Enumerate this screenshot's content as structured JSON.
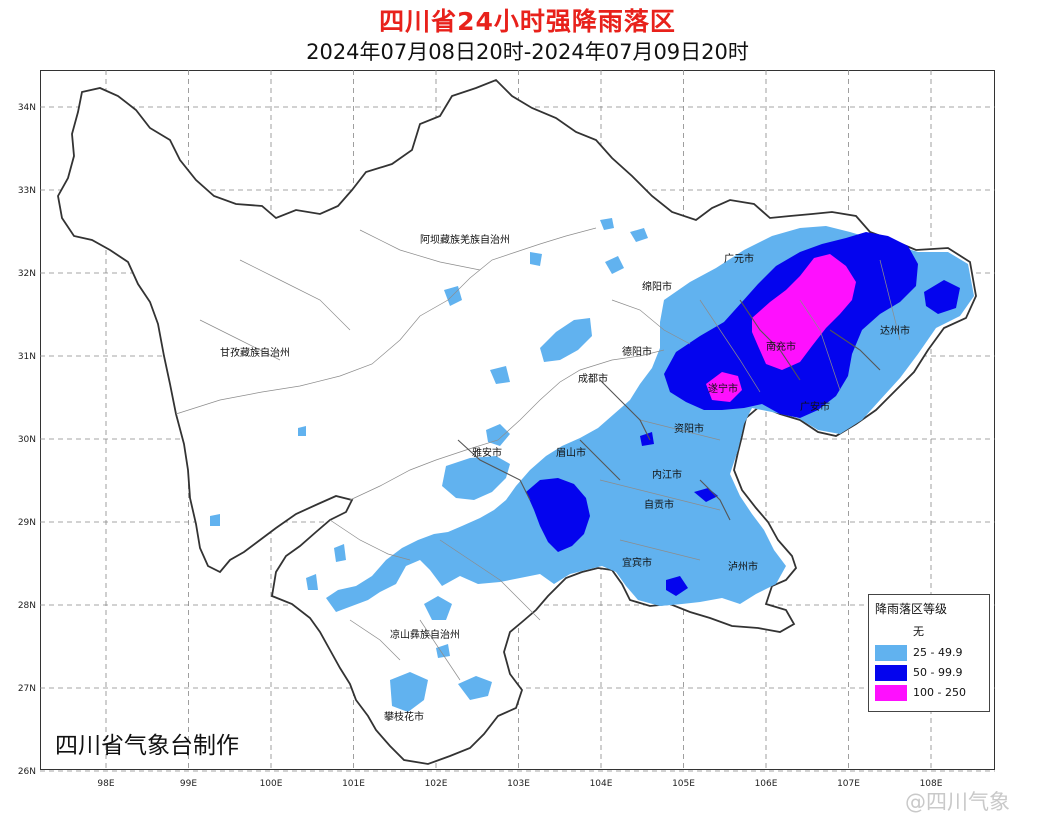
{
  "title": "四川省24小时强降雨落区",
  "subtitle": "2024年07月08日20时-2024年07月09日20时",
  "y_axis_labels": [
    "34N",
    "33N",
    "32N",
    "31N",
    "30N",
    "29N",
    "28N",
    "27N",
    "26N"
  ],
  "x_axis_labels": [
    "98E",
    "99E",
    "100E",
    "101E",
    "102E",
    "103E",
    "104E",
    "105E",
    "106E",
    "107E",
    "108E"
  ],
  "place_labels": [
    "阿坝藏族羌族自治州",
    "甘孜藏族自治州",
    "凉山彝族自治州",
    "攀枝花市",
    "雅安市",
    "眉山市",
    "成都市",
    "德阳市",
    "绵阳市",
    "广元市",
    "南充市",
    "遂宁市",
    "资阳市",
    "内江市",
    "自贡市",
    "宜宾市",
    "泸州市",
    "达州市",
    "广安市"
  ],
  "legend": {
    "title": "降雨落区等级",
    "items": [
      {
        "label": "无",
        "color": "#ffffff"
      },
      {
        "label": "25 - 49.9",
        "color": "#61b2ef"
      },
      {
        "label": "50 - 99.9",
        "color": "#0404ee"
      },
      {
        "label": "100 - 250",
        "color": "#fe10fe"
      }
    ]
  },
  "footer": "四川省气象台制作",
  "watermark": "@四川气象"
}
